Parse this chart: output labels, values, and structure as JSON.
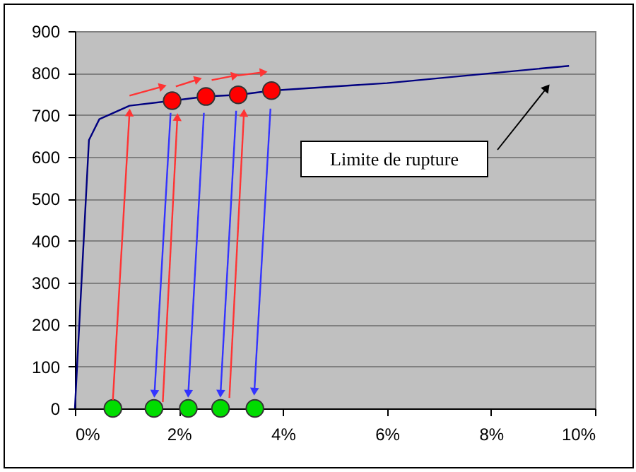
{
  "chart_data": {
    "type": "line",
    "xlim": [
      0,
      10
    ],
    "ylim": [
      0,
      900
    ],
    "xticks": [
      {
        "value": 0,
        "label": "0%"
      },
      {
        "value": 2,
        "label": "2%"
      },
      {
        "value": 4,
        "label": "4%"
      },
      {
        "value": 6,
        "label": "6%"
      },
      {
        "value": 8,
        "label": "8%"
      },
      {
        "value": 10,
        "label": "10%"
      }
    ],
    "yticks": [
      0,
      100,
      200,
      300,
      400,
      500,
      600,
      700,
      800,
      900
    ],
    "grid": "y",
    "legend": false,
    "annotations": [
      "Limite de rupture"
    ],
    "series": [
      {
        "color": "#000080",
        "x": [
          0,
          0.27,
          0.47,
          1.05,
          1.87,
          2.52,
          3.14,
          3.78,
          6.0,
          9.5
        ],
        "values": [
          0,
          640,
          690,
          722,
          734,
          744,
          748,
          758,
          776,
          817
        ]
      },
      {
        "type": "scatter",
        "color": "#ff0000",
        "x": [
          1.87,
          2.52,
          3.14,
          3.78
        ],
        "values": [
          734,
          744,
          748,
          758
        ]
      },
      {
        "type": "scatter",
        "color": "#00dd00",
        "x": [
          0.73,
          1.52,
          2.18,
          2.8,
          3.46
        ],
        "values": [
          0,
          0,
          0,
          0,
          0
        ]
      },
      {
        "type": "line",
        "color": "#ff3333",
        "x": [
          0.73,
          1.05
        ],
        "values": [
          20,
          706
        ]
      },
      {
        "type": "line",
        "color": "#ff3333",
        "x": [
          1.69,
          1.97
        ],
        "values": [
          15,
          695
        ]
      },
      {
        "type": "line",
        "color": "#ff3333",
        "x": [
          2.97,
          3.25
        ],
        "values": [
          25,
          705
        ]
      },
      {
        "type": "line",
        "color": "#3333ff",
        "x": [
          1.84,
          1.53
        ],
        "values": [
          705,
          35
        ]
      },
      {
        "type": "line",
        "color": "#3333ff",
        "x": [
          2.48,
          2.18
        ],
        "values": [
          705,
          35
        ]
      },
      {
        "type": "line",
        "color": "#3333ff",
        "x": [
          3.1,
          2.8
        ],
        "values": [
          710,
          35
        ]
      },
      {
        "type": "line",
        "color": "#3333ff",
        "x": [
          3.76,
          3.45
        ],
        "values": [
          715,
          40
        ]
      },
      {
        "type": "line",
        "color": "#ff3333",
        "x": [
          1.05,
          1.69
        ],
        "values": [
          746,
          768
        ]
      },
      {
        "type": "line",
        "color": "#ff3333",
        "x": [
          1.94,
          2.37
        ],
        "values": [
          768,
          785
        ]
      },
      {
        "type": "line",
        "color": "#ff3333",
        "x": [
          2.63,
          3.08
        ],
        "values": [
          783,
          794
        ]
      },
      {
        "type": "line",
        "color": "#ff3333",
        "x": [
          3.13,
          3.63
        ],
        "values": [
          794,
          802
        ]
      }
    ]
  }
}
